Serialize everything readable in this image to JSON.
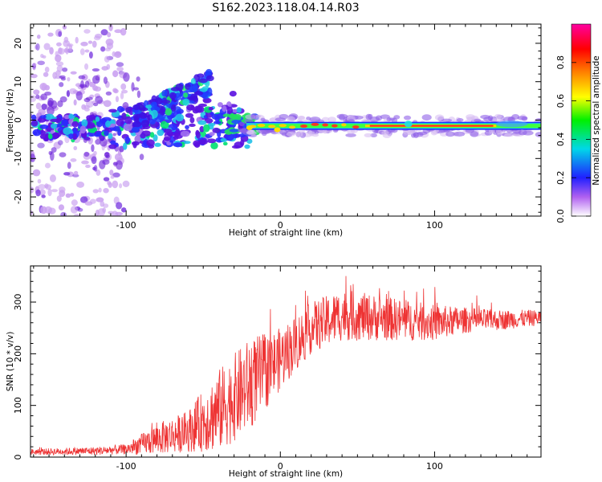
{
  "title": "S162.2023.118.04.14.R03",
  "chart_data": [
    {
      "type": "heatmap",
      "xlabel": "Height of straight line (km)",
      "ylabel": "Frequency (Hz)",
      "xlim": [
        -162,
        169
      ],
      "ylim": [
        -25,
        25
      ],
      "xticks": [
        -100,
        0,
        100
      ],
      "yticks": [
        -20,
        -10,
        0,
        10,
        20
      ],
      "colorbar": {
        "label": "Normalized spectral amplitude",
        "range": [
          0,
          1
        ],
        "ticks": [
          "0.0",
          "0.2",
          "0.4",
          "0.6",
          "0.8"
        ],
        "colors": [
          "#ffffff",
          "#a020f0",
          "#2020ff",
          "#00e0e0",
          "#00f000",
          "#ffff00",
          "#ff8000",
          "#ff0000",
          "#ff00a0"
        ]
      },
      "features": {
        "signal_line_freq_hz": -1.5,
        "signal_line_x_range": [
          -20,
          169
        ],
        "scatter_region_x_range": [
          -162,
          -100
        ]
      }
    },
    {
      "type": "line",
      "xlabel": "Height of straight line (km)",
      "ylabel": "SNR (10 * v/v)",
      "xlim": [
        -162,
        169
      ],
      "ylim": [
        0,
        370
      ],
      "xticks": [
        -100,
        0,
        100
      ],
      "yticks": [
        0,
        100,
        200,
        300
      ],
      "color": "#ee3333",
      "envelope": {
        "x": [
          -162,
          -120,
          -100,
          -80,
          -60,
          -40,
          -20,
          0,
          20,
          40,
          60,
          80,
          100,
          120,
          140,
          169
        ],
        "mean": [
          10,
          12,
          15,
          35,
          50,
          90,
          140,
          190,
          250,
          275,
          270,
          265,
          260,
          265,
          265,
          270
        ],
        "spread": [
          6,
          8,
          10,
          30,
          40,
          80,
          90,
          60,
          50,
          50,
          45,
          40,
          35,
          25,
          20,
          15
        ]
      }
    }
  ]
}
